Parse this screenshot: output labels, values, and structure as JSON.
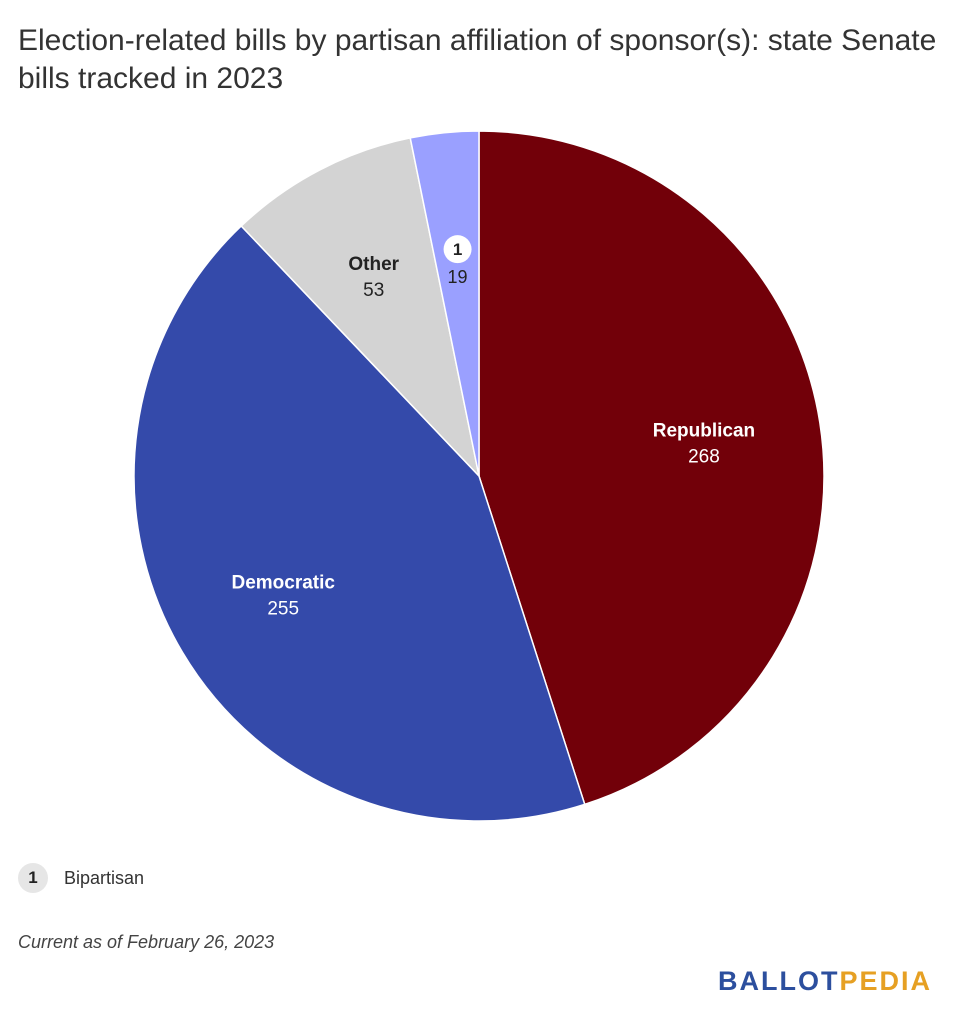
{
  "title": "Election-related bills by partisan affiliation of sponsor(s): state Senate bills tracked in 2023",
  "chart_data": {
    "type": "pie",
    "title": "Election-related bills by partisan affiliation of sponsor(s): state Senate bills tracked in 2023",
    "slices": [
      {
        "label": "Republican",
        "value": 268,
        "color": "#720009",
        "label_color": "#ffffff"
      },
      {
        "label": "Democratic",
        "value": 255,
        "color": "#344aaa",
        "label_color": "#ffffff"
      },
      {
        "label": "Other",
        "value": 53,
        "color": "#d3d3d3",
        "label_color": "#222222"
      },
      {
        "label": "1",
        "value": 19,
        "color": "#9aa0ff",
        "label_color": "#222222",
        "footnote": "Bipartisan"
      }
    ]
  },
  "footnote": {
    "marker": "1",
    "text": "Bipartisan"
  },
  "notes": "Current as of February 26, 2023",
  "brand": {
    "part1": "BALLOT",
    "part2": "PEDIA"
  }
}
